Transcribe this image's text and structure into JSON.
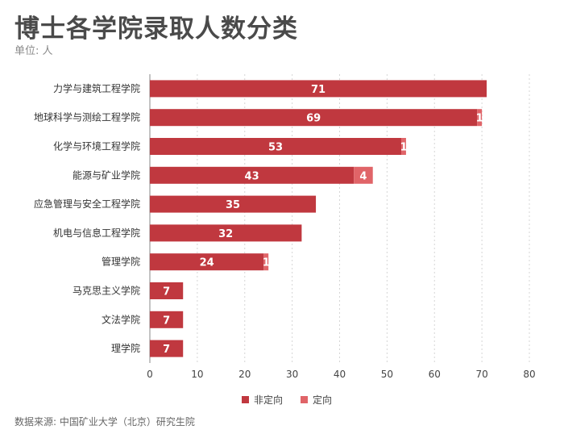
{
  "title": "博士各学院录取人数分类",
  "unit": "单位: 人",
  "source": "数据来源: 中国矿业大学（北京）研究生院",
  "colors": {
    "primary": "#c0383f",
    "secondary": "#e06468",
    "grid": "#d5d5d5",
    "label": "#333333"
  },
  "chart_data": {
    "type": "bar",
    "orientation": "horizontal",
    "stacked": true,
    "title": "博士各学院录取人数分类",
    "xlabel": "",
    "ylabel": "",
    "xlim": [
      0,
      80
    ],
    "xticks": [
      0,
      10,
      20,
      30,
      40,
      50,
      60,
      70,
      80
    ],
    "grid": true,
    "legend_position": "bottom",
    "categories": [
      "力学与建筑工程学院",
      "地球科学与测绘工程学院",
      "化学与环境工程学院",
      "能源与矿业学院",
      "应急管理与安全工程学院",
      "机电与信息工程学院",
      "管理学院",
      "马克思主义学院",
      "文法学院",
      "理学院"
    ],
    "series": [
      {
        "name": "非定向",
        "values": [
          71,
          69,
          53,
          43,
          35,
          32,
          24,
          7,
          7,
          7
        ]
      },
      {
        "name": "定向",
        "values": [
          0,
          1,
          1,
          4,
          0,
          0,
          1,
          0,
          0,
          0
        ]
      }
    ]
  }
}
